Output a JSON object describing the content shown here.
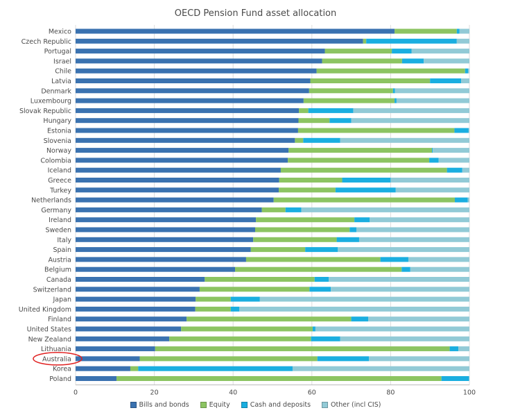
{
  "chart_data": {
    "type": "bar",
    "orientation": "horizontal",
    "stacked": true,
    "title": "OECD Pension Fund asset allocation",
    "xlim": [
      0,
      100
    ],
    "xticks": [
      "0",
      "20",
      "40",
      "60",
      "80",
      "100"
    ],
    "legend_position": "bottom",
    "categories": [
      "Mexico",
      "Czech Republic",
      "Portugal",
      "Israel",
      "Chile",
      "Latvia",
      "Denmark",
      "Luxembourg",
      "Slovak Republic",
      "Hungary",
      "Estonia",
      "Slovenia",
      "Norway",
      "Colombia",
      "Iceland",
      "Greece",
      "Turkey",
      "Netherlands",
      "Germany",
      "Ireland",
      "Sweden",
      "Italy",
      "Spain",
      "Austria",
      "Belgium",
      "Canada",
      "Switzerland",
      "Japan",
      "United Kingdom",
      "Finland",
      "United States",
      "New Zealand",
      "Lithuania",
      "Australia",
      "Korea",
      "Poland"
    ],
    "series": [
      {
        "name": "Bills and bonds",
        "color": "#3a72b0",
        "values": [
          81,
          73,
          63.3,
          62.6,
          61.2,
          59.6,
          59.3,
          57.9,
          56.7,
          56.6,
          56.5,
          55.7,
          54.1,
          53.9,
          52.1,
          51.7,
          51.6,
          50.3,
          47.3,
          45.8,
          45.6,
          45.1,
          44.5,
          43.3,
          40.5,
          32.8,
          31.5,
          30.5,
          30.4,
          28.2,
          26.8,
          23.8,
          20.2,
          16.3,
          13.9,
          10.4
        ]
      },
      {
        "name": "Equity",
        "color": "#8cc462",
        "values": [
          15.8,
          0.8,
          17,
          20.3,
          37.7,
          30.4,
          21.3,
          23.1,
          2.4,
          7.9,
          39.7,
          2.1,
          36.4,
          35.9,
          42.2,
          16,
          14.4,
          46,
          6,
          25,
          24,
          21.2,
          13.8,
          34.1,
          42.3,
          27.9,
          27.9,
          8.9,
          9,
          41.8,
          33.4,
          36,
          74.8,
          45.1,
          2,
          82.5
        ]
      },
      {
        "name": "Cash and deposits",
        "color": "#1aaee0",
        "values": [
          0.7,
          23,
          5,
          5.5,
          0.8,
          7.9,
          0.5,
          0.5,
          11.4,
          5.5,
          3.6,
          9.4,
          0.2,
          2.4,
          3.9,
          12.3,
          15.3,
          3.3,
          4,
          3.9,
          1.7,
          5.7,
          8.3,
          7.1,
          2.2,
          3.6,
          5.4,
          7.4,
          2.2,
          4.3,
          0.7,
          7.4,
          2.2,
          13.1,
          39.2,
          7
        ]
      },
      {
        "name": "Other (incl CIS)",
        "color": "#92cad6",
        "values": [
          2.5,
          3.2,
          14.7,
          11.6,
          0.3,
          2.1,
          18.9,
          18.5,
          29.5,
          30,
          0.2,
          32.8,
          9.3,
          7.8,
          1.8,
          20,
          18.7,
          0.4,
          42.7,
          25.3,
          28.7,
          28,
          33.4,
          15.5,
          15,
          35.7,
          35.2,
          53.2,
          58.4,
          25.7,
          39.1,
          32.8,
          2.8,
          25.5,
          44.9,
          0.1
        ]
      }
    ]
  }
}
